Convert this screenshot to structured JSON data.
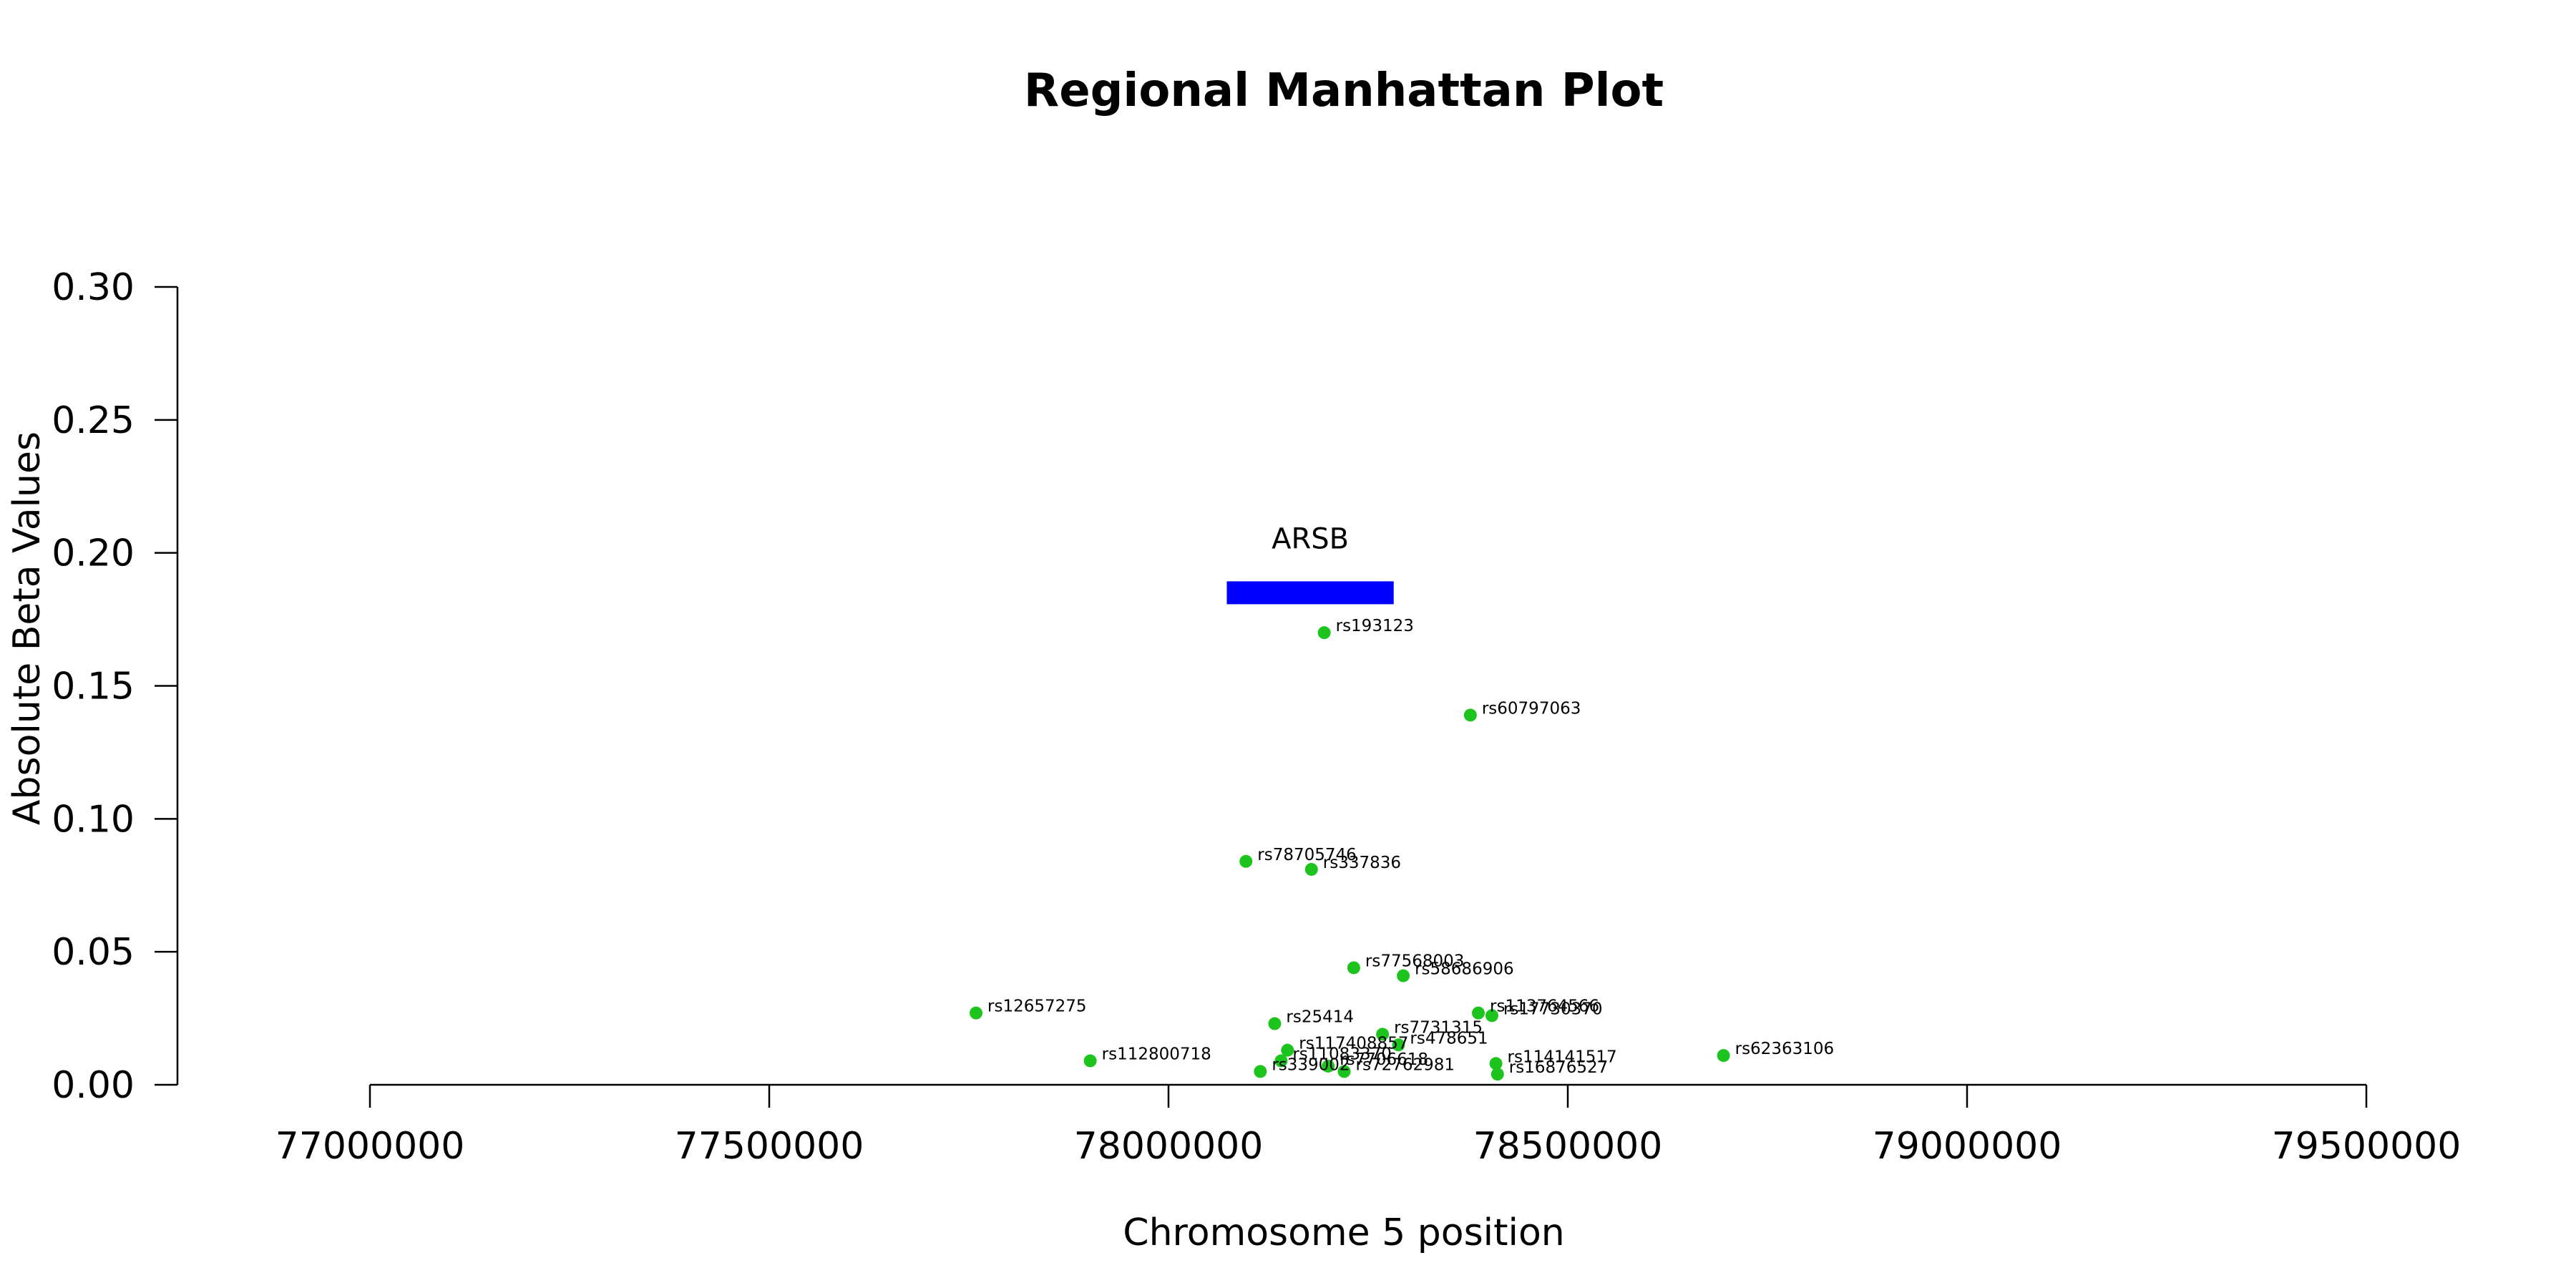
{
  "chart_data": {
    "type": "scatter",
    "title": "Regional Manhattan Plot",
    "xlabel": "Chromosome 5 position",
    "ylabel": "Absolute Beta Values",
    "xlim": [
      77000000,
      79500000
    ],
    "ylim": [
      0.0,
      0.3
    ],
    "x_ticks": [
      77000000,
      77500000,
      78000000,
      78500000,
      79000000,
      79500000
    ],
    "x_tick_labels": [
      "77000000",
      "77500000",
      "78000000",
      "78500000",
      "79000000",
      "79500000"
    ],
    "y_ticks": [
      0.0,
      0.05,
      0.1,
      0.15,
      0.2,
      0.25,
      0.3
    ],
    "y_tick_labels": [
      "0.00",
      "0.05",
      "0.10",
      "0.15",
      "0.20",
      "0.25",
      "0.30"
    ],
    "grid": false,
    "point_color": "#1ec41e",
    "gene_color": "#0000ff",
    "gene": {
      "name": "ARSB",
      "start": 78073000,
      "end": 78282000,
      "y": 0.185
    },
    "points": [
      {
        "snp": "rs193123",
        "x": 78195000,
        "y": 0.17
      },
      {
        "snp": "rs60797063",
        "x": 78378000,
        "y": 0.139
      },
      {
        "snp": "rs78705746",
        "x": 78097000,
        "y": 0.084
      },
      {
        "snp": "rs337836",
        "x": 78179000,
        "y": 0.081
      },
      {
        "snp": "rs77568003",
        "x": 78232000,
        "y": 0.044
      },
      {
        "snp": "rs58686906",
        "x": 78294000,
        "y": 0.041
      },
      {
        "snp": "rs12657275",
        "x": 77759000,
        "y": 0.027
      },
      {
        "snp": "rs113764566",
        "x": 78388000,
        "y": 0.027
      },
      {
        "snp": "rs17730370",
        "x": 78405000,
        "y": 0.026
      },
      {
        "snp": "rs25414",
        "x": 78133000,
        "y": 0.023
      },
      {
        "snp": "rs7731315",
        "x": 78268000,
        "y": 0.019
      },
      {
        "snp": "rs478651",
        "x": 78288000,
        "y": 0.015
      },
      {
        "snp": "rs117408857",
        "x": 78149000,
        "y": 0.013
      },
      {
        "snp": "rs62363106",
        "x": 78695000,
        "y": 0.011
      },
      {
        "snp": "rs112800718",
        "x": 77902000,
        "y": 0.009
      },
      {
        "snp": "rs11083370",
        "x": 78141000,
        "y": 0.009
      },
      {
        "snp": "rs114141517",
        "x": 78410000,
        "y": 0.008
      },
      {
        "snp": "rs7706618",
        "x": 78200000,
        "y": 0.007
      },
      {
        "snp": "rs72762981",
        "x": 78220000,
        "y": 0.005
      },
      {
        "snp": "rs339002",
        "x": 78115000,
        "y": 0.005
      },
      {
        "snp": "rs16876527",
        "x": 78412000,
        "y": 0.004
      }
    ]
  }
}
